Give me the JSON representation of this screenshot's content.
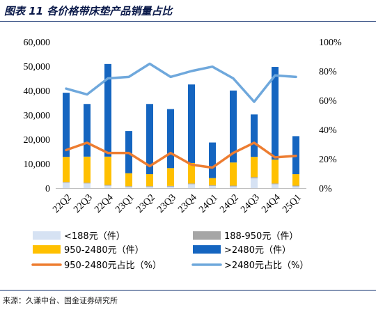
{
  "title": "图表 11 各价格带床垫产品销量占比",
  "source": "来源：久谦中台、国金证券研究所",
  "colors": {
    "lt188": "#d6e2f3",
    "s188_950": "#a6a6a6",
    "s950_2480": "#ffc000",
    "gt2480": "#1565c0",
    "line950_2480": "#ed7d31",
    "linegt2480": "#6fa8dc"
  },
  "chart_data": {
    "type": "bar+line",
    "categories": [
      "22Q2",
      "22Q3",
      "22Q4",
      "23Q1",
      "23Q2",
      "23Q3",
      "23Q4",
      "24Q1",
      "24Q2",
      "24Q3",
      "24Q4",
      "25Q1"
    ],
    "y_left": {
      "ylim": [
        0,
        60000
      ],
      "ticks": [
        "0",
        "10,000",
        "20,000",
        "30,000",
        "40,000",
        "50,000",
        "60,000"
      ]
    },
    "y_right": {
      "ylim": [
        0,
        100
      ],
      "ticks": [
        "0%",
        "20%",
        "40%",
        "60%",
        "80%",
        "100%"
      ]
    },
    "stacked_series": [
      {
        "name": "<188元（件）",
        "values": [
          2200,
          1900,
          1000,
          500,
          500,
          600,
          1600,
          900,
          700,
          4000,
          1600,
          700
        ]
      },
      {
        "name": "188-950元（件）",
        "values": [
          300,
          300,
          300,
          300,
          300,
          300,
          300,
          300,
          300,
          500,
          300,
          300
        ]
      },
      {
        "name": "950-2480元（件）",
        "values": [
          10300,
          10700,
          11600,
          5300,
          4900,
          7300,
          8400,
          2900,
          9500,
          8300,
          9800,
          4700
        ]
      },
      {
        "name": ">2480元（件）",
        "values": [
          26300,
          21600,
          38000,
          17300,
          28800,
          24200,
          32200,
          14600,
          29500,
          17400,
          38000,
          15600
        ]
      }
    ],
    "line_series": [
      {
        "name": "950-2480元占比（%）",
        "values": [
          26,
          31,
          24,
          24,
          15,
          24,
          16,
          14,
          24,
          31,
          21,
          22
        ]
      },
      {
        "name": ">2480元占比（%）",
        "values": [
          68,
          64,
          75,
          76,
          85,
          76,
          80,
          83,
          75,
          59,
          77,
          76
        ]
      }
    ],
    "legend": [
      "<188元（件）",
      "188-950元（件）",
      "950-2480元（件）",
      ">2480元（件）",
      "950-2480元占比（%）",
      ">2480元占比（%）"
    ]
  }
}
